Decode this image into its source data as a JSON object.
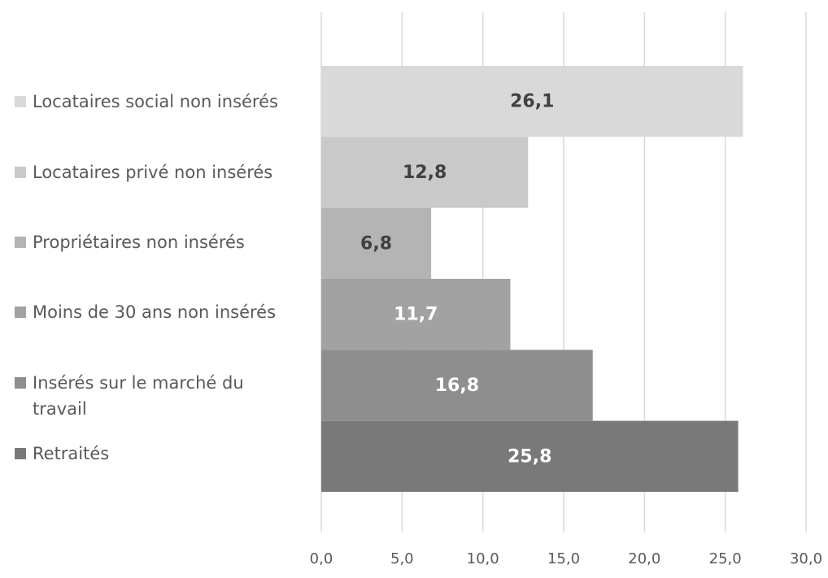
{
  "chart_data": {
    "type": "barh",
    "categories": [
      "Locataires social non insérés",
      "Locataires privé non insérés",
      "Propriétaires non insérés",
      "Moins de 30 ans non insérés",
      "Insérés sur le marché du travail",
      "Retraités"
    ],
    "values": [
      26.1,
      12.8,
      6.8,
      11.7,
      16.8,
      25.8
    ],
    "value_labels": [
      "26,1",
      "12,8",
      "6,8",
      "11,7",
      "16,8",
      "25,8"
    ],
    "colors": [
      "#d9d9d9",
      "#c9c9c9",
      "#b4b4b4",
      "#a2a2a2",
      "#8e8e8e",
      "#797979"
    ],
    "value_label_colors": [
      "#404040",
      "#404040",
      "#404040",
      "#ffffff",
      "#ffffff",
      "#ffffff"
    ],
    "xlim": [
      0,
      30
    ],
    "xticks": [
      {
        "value": 0,
        "label": "0,0"
      },
      {
        "value": 5,
        "label": "5,0"
      },
      {
        "value": 10,
        "label": "10,0"
      },
      {
        "value": 15,
        "label": "15,0"
      },
      {
        "value": 20,
        "label": "20,0"
      },
      {
        "value": 25,
        "label": "25,0"
      },
      {
        "value": 30,
        "label": "30,0"
      }
    ],
    "grid": true
  }
}
